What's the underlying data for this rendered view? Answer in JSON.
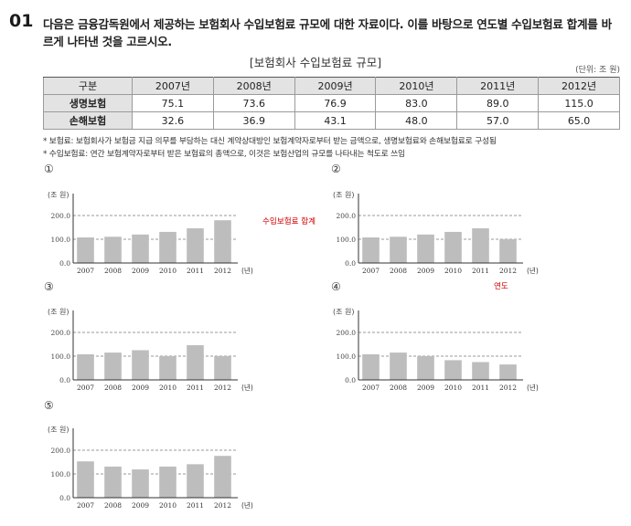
{
  "question": {
    "number": "01",
    "text": "다음은 금융감독원에서 제공하는 보험회사 수입보험료 규모에 대한 자료이다. 이를 바탕으로 연도별 수입보험료 합계를 바르게 나타낸 것을 고르시오."
  },
  "table": {
    "title": "[보험회사 수입보험료 규모]",
    "unit": "(단위: 조 원)",
    "header_label": "구분",
    "years": [
      "2007년",
      "2008년",
      "2009년",
      "2010년",
      "2011년",
      "2012년"
    ],
    "rows": [
      {
        "label": "생명보험",
        "values": [
          "75.1",
          "73.6",
          "76.9",
          "83.0",
          "89.0",
          "115.0"
        ]
      },
      {
        "label": "손해보험",
        "values": [
          "32.6",
          "36.9",
          "43.1",
          "48.0",
          "57.0",
          "65.0"
        ]
      }
    ]
  },
  "notes": [
    "* 보험료: 보험회사가 보험금 지급 의무를 부담하는 대신 계약상대방인 보험계약자로부터 받는 금액으로, 생명보험료와 손해보험료로 구성됨",
    "* 수입보험료: 연간 보험계약자로부터 받은 보험료의 총액으로, 이것은 보험산업의 규모를 나타내는 척도로 쓰임"
  ],
  "annotations": {
    "y_axis": "수입보험료 합계",
    "x_axis": "연도"
  },
  "chart_data": [
    {
      "option": "①",
      "type": "bar",
      "ylabel": "(조 원)",
      "xlabel": "(년)",
      "categories": [
        "2007",
        "2008",
        "2009",
        "2010",
        "2011",
        "2012"
      ],
      "values": [
        107.7,
        110.5,
        120.0,
        131.0,
        146.0,
        180.0
      ],
      "yticks": [
        "0.0",
        "100.0",
        "200.0"
      ],
      "ylim": [
        0,
        200
      ],
      "grid": "dashed at 100 and 200"
    },
    {
      "option": "②",
      "type": "bar",
      "ylabel": "(조 원)",
      "xlabel": "(년)",
      "categories": [
        "2007",
        "2008",
        "2009",
        "2010",
        "2011",
        "2012"
      ],
      "values": [
        107.7,
        110.5,
        120.0,
        131.0,
        146.0,
        100.0
      ],
      "yticks": [
        "0.0",
        "100.0",
        "200.0"
      ],
      "ylim": [
        0,
        200
      ],
      "grid": "dashed at 100 and 200"
    },
    {
      "option": "③",
      "type": "bar",
      "ylabel": "(조 원)",
      "xlabel": "(년)",
      "categories": [
        "2007",
        "2008",
        "2009",
        "2010",
        "2011",
        "2012"
      ],
      "values": [
        107.7,
        115.0,
        125.0,
        100.0,
        146.0,
        100.0
      ],
      "yticks": [
        "0.0",
        "100.0",
        "200.0"
      ],
      "ylim": [
        0,
        200
      ],
      "grid": "dashed at 100 and 200"
    },
    {
      "option": "④",
      "type": "bar",
      "ylabel": "(조 원)",
      "xlabel": "(년)",
      "categories": [
        "2007",
        "2008",
        "2009",
        "2010",
        "2011",
        "2012"
      ],
      "values": [
        107.7,
        115.0,
        100.0,
        83.0,
        75.0,
        65.0
      ],
      "yticks": [
        "0.0",
        "100.0",
        "200.0"
      ],
      "ylim": [
        0,
        200
      ],
      "grid": "dashed at 100 and 200"
    },
    {
      "option": "⑤",
      "type": "bar",
      "ylabel": "(조 원)",
      "xlabel": "(년)",
      "categories": [
        "2007",
        "2008",
        "2009",
        "2010",
        "2011",
        "2012"
      ],
      "values": [
        153.0,
        131.0,
        119.0,
        131.0,
        141.0,
        176.0
      ],
      "yticks": [
        "0.0",
        "100.0",
        "200.0"
      ],
      "ylim": [
        0,
        200
      ],
      "grid": "dashed at 100 and 200"
    }
  ]
}
